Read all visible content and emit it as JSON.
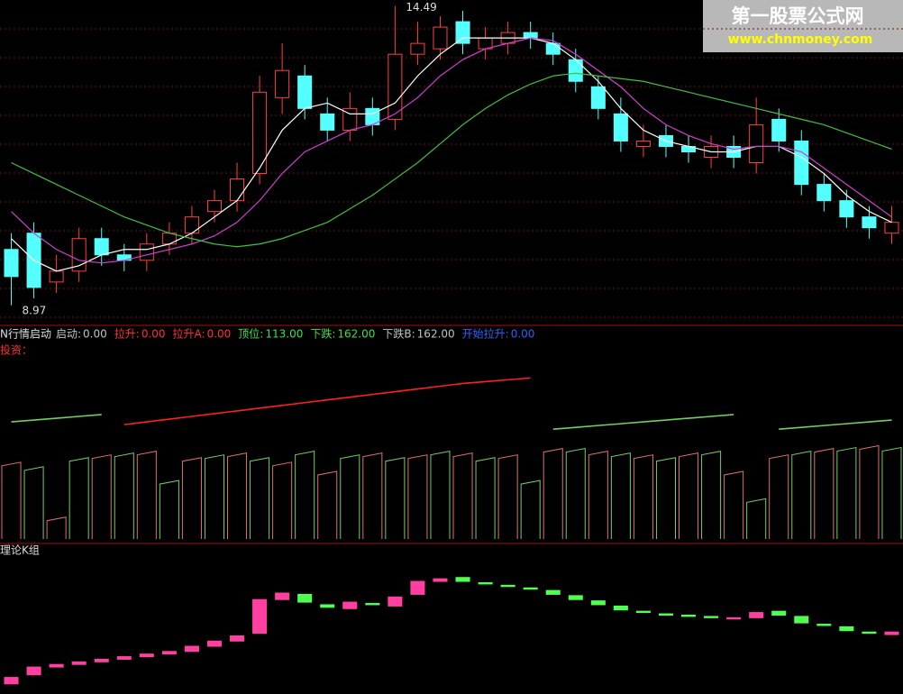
{
  "watermark": {
    "title": "第一股票公式网",
    "url": "www.chnmoney.com"
  },
  "chart_data": [
    {
      "type": "candlestick",
      "ylim": [
        8.7,
        14.6
      ],
      "up_color": "#ff4040",
      "down_color": "#54ffff",
      "open": [
        10.0,
        10.3,
        9.4,
        9.6,
        10.2,
        9.9,
        9.8,
        10.1,
        10.3,
        10.7,
        10.9,
        11.4,
        12.8,
        13.2,
        12.5,
        12.2,
        12.6,
        12.4,
        13.6,
        13.7,
        14.2,
        13.7,
        13.8,
        14.0,
        13.8,
        13.5,
        13.0,
        12.5,
        11.9,
        12.1,
        11.9,
        11.7,
        11.9,
        11.6,
        12.4,
        12.0,
        11.2,
        10.9,
        10.6,
        10.3
      ],
      "high": [
        10.3,
        10.5,
        9.9,
        10.4,
        10.4,
        10.1,
        10.3,
        10.5,
        10.8,
        11.1,
        11.6,
        13.2,
        13.8,
        13.4,
        12.8,
        12.9,
        12.8,
        14.49,
        14.2,
        14.3,
        14.4,
        14.1,
        14.2,
        14.2,
        14.0,
        13.7,
        13.2,
        12.8,
        12.3,
        12.3,
        12.1,
        12.1,
        12.1,
        12.8,
        12.6,
        12.2,
        11.4,
        11.1,
        10.8,
        10.8
      ],
      "low": [
        8.97,
        9.1,
        9.2,
        9.4,
        9.7,
        9.6,
        9.6,
        9.9,
        10.1,
        10.5,
        10.7,
        11.2,
        12.5,
        12.4,
        12.0,
        12.0,
        12.1,
        12.2,
        13.4,
        13.5,
        13.6,
        13.5,
        13.6,
        13.7,
        13.4,
        12.9,
        12.4,
        11.8,
        11.7,
        11.7,
        11.6,
        11.5,
        11.5,
        11.4,
        11.8,
        11.0,
        10.7,
        10.4,
        10.2,
        10.1
      ],
      "close": [
        9.5,
        9.3,
        9.6,
        10.2,
        9.9,
        9.8,
        10.1,
        10.3,
        10.6,
        10.9,
        11.3,
        12.9,
        13.3,
        12.6,
        12.2,
        12.6,
        12.3,
        13.6,
        13.8,
        14.1,
        13.8,
        13.9,
        14.0,
        13.9,
        13.6,
        13.1,
        12.6,
        12.0,
        12.0,
        11.9,
        11.8,
        11.9,
        11.7,
        12.3,
        12.0,
        11.2,
        10.9,
        10.6,
        10.4,
        10.5
      ],
      "series": [
        {
          "color": "#ffffff",
          "values": [
            10.2,
            9.8,
            9.6,
            9.7,
            9.9,
            10.0,
            10.0,
            10.1,
            10.3,
            10.6,
            10.9,
            11.5,
            12.2,
            12.6,
            12.7,
            12.5,
            12.5,
            12.7,
            13.2,
            13.6,
            13.9,
            13.9,
            13.9,
            13.9,
            13.8,
            13.5,
            13.1,
            12.6,
            12.2,
            12.0,
            11.9,
            11.8,
            11.8,
            11.9,
            11.9,
            11.7,
            11.4,
            11.0,
            10.7,
            10.5
          ]
        },
        {
          "color": "#d040d0",
          "values": [
            10.7,
            10.3,
            10.0,
            9.8,
            9.75,
            9.8,
            9.9,
            10.0,
            10.1,
            10.25,
            10.5,
            10.9,
            11.4,
            11.8,
            12.0,
            12.2,
            12.3,
            12.5,
            12.8,
            13.2,
            13.5,
            13.7,
            13.8,
            13.9,
            13.85,
            13.6,
            13.3,
            13.0,
            12.6,
            12.3,
            12.1,
            11.95,
            11.85,
            11.9,
            11.9,
            11.8,
            11.5,
            11.2,
            10.9,
            10.6
          ]
        },
        {
          "color": "#40c040",
          "values": [
            11.6,
            11.4,
            11.2,
            11.0,
            10.8,
            10.6,
            10.45,
            10.3,
            10.2,
            10.1,
            10.05,
            10.1,
            10.2,
            10.35,
            10.5,
            10.75,
            11.0,
            11.3,
            11.6,
            11.95,
            12.3,
            12.6,
            12.85,
            13.05,
            13.2,
            13.25,
            13.2,
            13.15,
            13.1,
            13.0,
            12.9,
            12.8,
            12.7,
            12.6,
            12.5,
            12.4,
            12.3,
            12.15,
            12.0,
            11.85
          ]
        }
      ]
    },
    {
      "type": "line",
      "title": "N行情启动",
      "subtitle": "投资：",
      "items": [
        {
          "name": "启动:",
          "value": "0.00",
          "color": "#c0c0c0"
        },
        {
          "name": "拉升:",
          "value": "0.00",
          "color": "#ff3030"
        },
        {
          "name": "拉升A:",
          "value": "0.00",
          "color": "#ff3030"
        },
        {
          "name": "顶位:",
          "value": "113.00",
          "color": "#40e040"
        },
        {
          "name": "下跌:",
          "value": "162.00",
          "color": "#40e040"
        },
        {
          "name": "下跌B:",
          "value": "162.00",
          "color": "#c0c0c0"
        },
        {
          "name": "开始拉升:",
          "value": "0.00",
          "color": "#3060ff"
        }
      ],
      "ylim": [
        0,
        200
      ],
      "bars": {
        "colors": [
          "#e07070",
          "#70d060"
        ],
        "values": [
          80,
          75,
          20,
          85,
          88,
          90,
          92,
          60,
          85,
          88,
          90,
          85,
          80,
          92,
          70,
          88,
          90,
          85,
          88,
          92,
          90,
          85,
          88,
          60,
          95,
          95,
          92,
          90,
          88,
          85,
          90,
          92,
          70,
          40,
          88,
          92,
          95,
          96,
          98,
          96
        ]
      },
      "series": [
        {
          "color": "#ff2020",
          "values": [
            null,
            null,
            null,
            null,
            null,
            125,
            128,
            131,
            134,
            137,
            140,
            143,
            146,
            149,
            152,
            155,
            158,
            161,
            164,
            167,
            170,
            172,
            174,
            176,
            null,
            null,
            null,
            null,
            null,
            null,
            null,
            null,
            null,
            null,
            null,
            null,
            null,
            null,
            null,
            null
          ]
        },
        {
          "color": "#70d060",
          "values": [
            128,
            130,
            132,
            134,
            136,
            null,
            null,
            null,
            null,
            null,
            null,
            null,
            null,
            null,
            null,
            null,
            null,
            null,
            null,
            null,
            null,
            null,
            null,
            null,
            120,
            122,
            124,
            126,
            128,
            130,
            132,
            134,
            136,
            null,
            120,
            122,
            124,
            126,
            128,
            130
          ]
        }
      ]
    },
    {
      "type": "candlestick",
      "title": "理论K组",
      "ylim": [
        0,
        100
      ],
      "up_color": "#ff40a0",
      "down_color": "#50ff50",
      "open": [
        5,
        12,
        18,
        20,
        22,
        24,
        26,
        28,
        30,
        34,
        38,
        44,
        70,
        74,
        66,
        63,
        67,
        65,
        74,
        84,
        87,
        83,
        81,
        79,
        77,
        73,
        69,
        65,
        61,
        59,
        58,
        57,
        55,
        56,
        61,
        57,
        51,
        49,
        45,
        43
      ],
      "close": [
        10,
        18,
        20,
        22,
        24,
        26,
        28,
        30,
        34,
        38,
        42,
        70,
        75,
        68,
        64,
        68,
        66,
        72,
        84,
        86,
        84,
        82,
        80,
        78,
        74,
        70,
        66,
        62,
        60,
        58,
        57,
        56,
        56,
        60,
        58,
        52,
        50,
        46,
        44,
        45
      ]
    }
  ]
}
